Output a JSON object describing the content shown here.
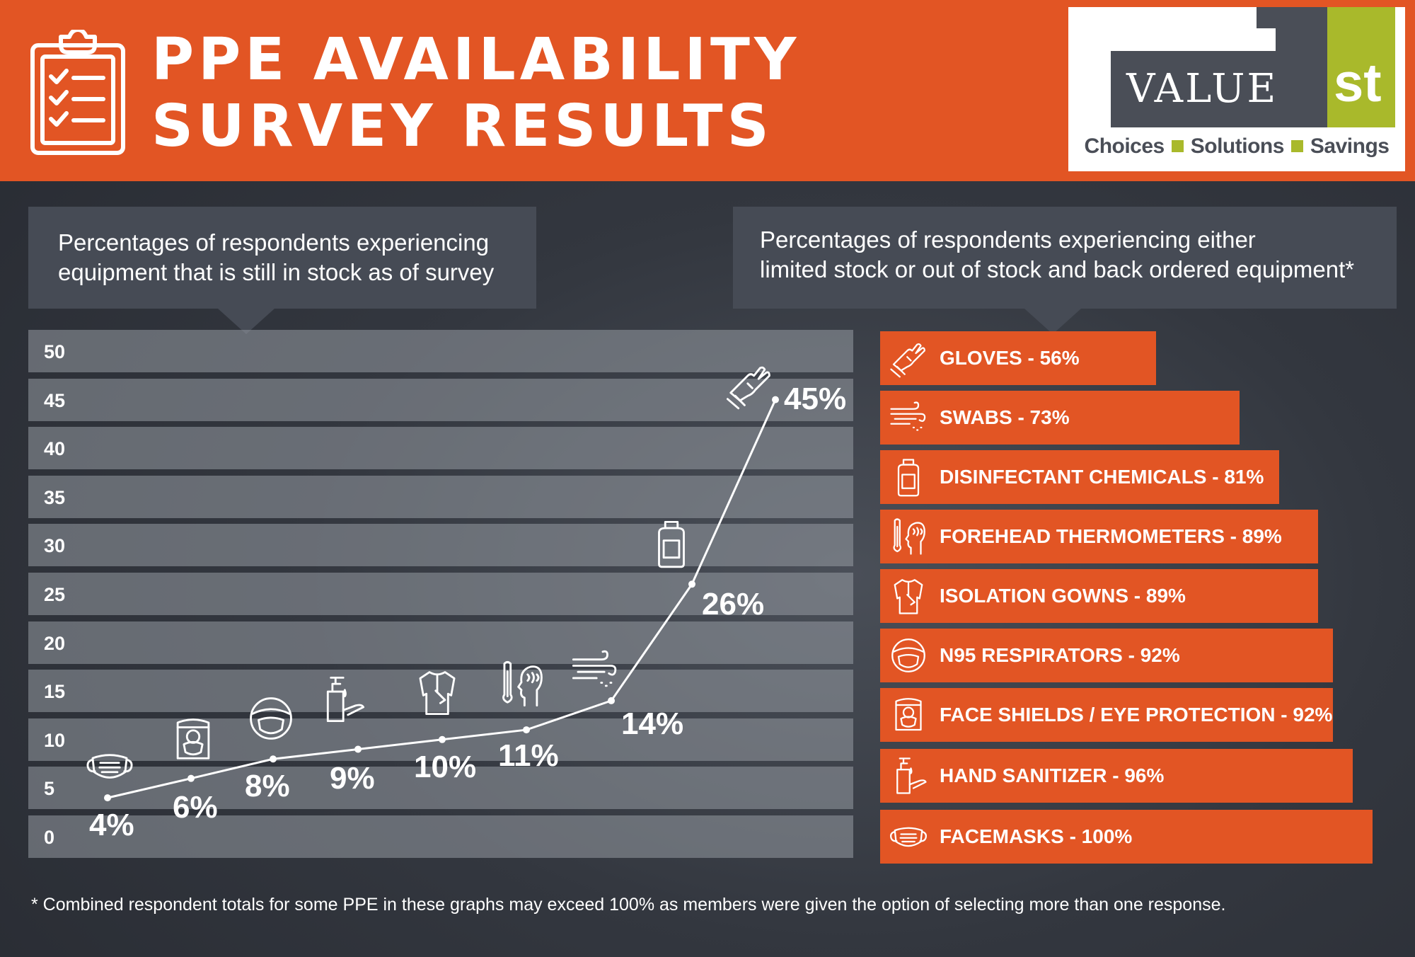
{
  "header": {
    "title_line1": "PPE AVAILABILITY",
    "title_line2": "SURVEY RESULTS",
    "icon": "clipboard-checklist-icon",
    "background_color": "#e25524"
  },
  "logo": {
    "word": "VALUE",
    "number": "1",
    "suffix": "st",
    "tagline": [
      "Choices",
      "Solutions",
      "Savings"
    ],
    "colors": {
      "grey": "#4a4e57",
      "green": "#a9b92b"
    }
  },
  "callouts": {
    "left": [
      "Percentages of respondents experiencing",
      "equipment that is still in stock as of survey"
    ],
    "right": [
      "Percentages of respondents experiencing either",
      "limited stock or out of stock and back ordered equipment*"
    ]
  },
  "chart_data": [
    {
      "type": "line",
      "title": "Percentages of respondents experiencing equipment that is still in stock as of survey",
      "x": [
        "Facemasks",
        "Face Shields / Eye Protection",
        "N95 Respirators",
        "Hand Sanitizer",
        "Isolation Gowns",
        "Forehead Thermometers",
        "Swabs",
        "Disinfectant Chemicals",
        "Gloves"
      ],
      "icons": [
        "facemask-icon",
        "face-shield-icon",
        "n95-respirator-icon",
        "hand-sanitizer-icon",
        "isolation-gown-icon",
        "forehead-thermometer-icon",
        "swab-icon",
        "disinfectant-bottle-icon",
        "gloves-icon"
      ],
      "values": [
        4,
        6,
        8,
        9,
        10,
        11,
        14,
        26,
        45
      ],
      "labels": [
        "4%",
        "6%",
        "8%",
        "9%",
        "10%",
        "11%",
        "14%",
        "26%",
        "45%"
      ],
      "ylim": [
        0,
        50
      ],
      "yticks": [
        0,
        5,
        10,
        15,
        20,
        25,
        30,
        35,
        40,
        45,
        50
      ],
      "grid": true,
      "line_color": "#ffffff"
    },
    {
      "type": "bar",
      "orientation": "horizontal",
      "title": "Percentages of respondents experiencing either limited stock or out of stock and back ordered equipment*",
      "categories": [
        "GLOVES",
        "SWABS",
        "DISINFECTANT CHEMICALS",
        "FOREHEAD THERMOMETERS",
        "ISOLATION GOWNS",
        "N95 RESPIRATORS",
        "FACE SHIELDS / EYE PROTECTION",
        "HAND SANITIZER",
        "FACEMASKS"
      ],
      "values": [
        56,
        73,
        81,
        89,
        89,
        92,
        92,
        96,
        100
      ],
      "labels": [
        "GLOVES - 56%",
        "SWABS - 73%",
        "DISINFECTANT CHEMICALS - 81%",
        "FOREHEAD THERMOMETERS - 89%",
        "ISOLATION GOWNS - 89%",
        "N95 RESPIRATORS - 92%",
        "FACE SHIELDS / EYE PROTECTION - 92%",
        "HAND SANITIZER - 96%",
        "FACEMASKS - 100%"
      ],
      "icons": [
        "gloves-icon",
        "swab-icon",
        "disinfectant-bottle-icon",
        "forehead-thermometer-icon",
        "isolation-gown-icon",
        "n95-respirator-icon",
        "face-shield-icon",
        "hand-sanitizer-icon",
        "facemask-icon"
      ],
      "bar_color": "#e25524",
      "xlim": [
        0,
        100
      ]
    }
  ],
  "footnote": "* Combined respondent totals for some PPE in these graphs may exceed 100% as members were given the option of selecting more than one response."
}
